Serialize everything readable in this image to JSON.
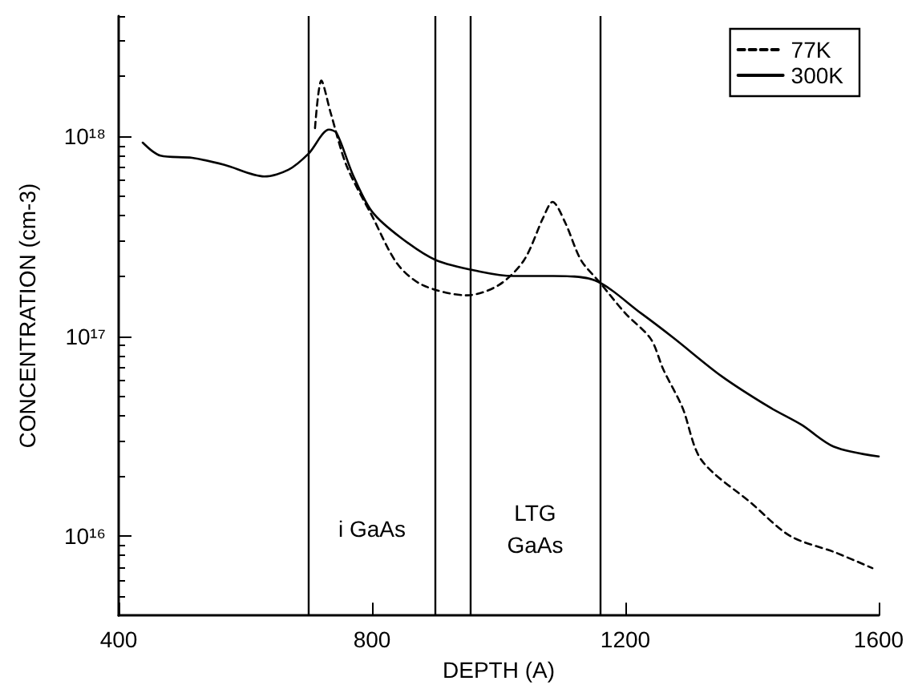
{
  "chart_data": {
    "type": "line",
    "xlabel": "DEPTH (A)",
    "ylabel": "CONCENTRATION (cm-3)",
    "log": "y",
    "xlim": [
      400,
      1600
    ],
    "xticks": [
      400,
      800,
      1200,
      1600
    ],
    "ylim": [
      4000000000000000.0,
      4e+18
    ],
    "yticks": [
      {
        "value": 1e+16,
        "label": "10¹⁶"
      },
      {
        "value": 1e+17,
        "label": "10¹⁷"
      },
      {
        "value": 1e+18,
        "label": "10¹⁸"
      }
    ],
    "legend": "top right",
    "grid": false,
    "marker": "none",
    "series": [
      {
        "name": "77K",
        "color": "#000000",
        "line_style": "dashed",
        "x": [
          710,
          720,
          735,
          760,
          800,
          840,
          880,
          950,
          1000,
          1040,
          1070,
          1085,
          1105,
          1130,
          1160,
          1200,
          1240,
          1260,
          1290,
          1320,
          1400,
          1460,
          1530,
          1590
        ],
        "values": [
          1.1e+18,
          1.9e+18,
          1.3e+18,
          7.1e+17,
          4e+17,
          2.3e+17,
          1.8e+17,
          1.6e+17,
          1.8e+17,
          2.4e+17,
          3.9e+17,
          4.7e+17,
          3.7e+17,
          2.4e+17,
          1.85e+17,
          1.3e+17,
          9.7e+16,
          6.8e+16,
          4.4e+16,
          2.4e+16,
          1.45e+16,
          1e+16,
          8300000000000000.0,
          6900000000000000.0
        ]
      },
      {
        "name": "300K",
        "color": "#000000",
        "line_style": "solid",
        "x": [
          438,
          466,
          516,
          567,
          630,
          668,
          700,
          732,
          744,
          770,
          800,
          846,
          901,
          972,
          1023,
          1086,
          1152,
          1225,
          1276,
          1352,
          1428,
          1478,
          1529,
          1600
        ],
        "values": [
          9.3e+17,
          8e+17,
          7.8e+17,
          7.2e+17,
          6.3e+17,
          6.8e+17,
          8.2e+17,
          1.08e+18,
          1.04e+18,
          6.4e+17,
          4.2e+17,
          3.1e+17,
          2.4e+17,
          2.1e+17,
          2e+17,
          2e+17,
          1.9e+17,
          1.3e+17,
          9.8e+16,
          6.3e+16,
          4.4e+16,
          3.6e+16,
          2.8e+16,
          2.5e+16
        ]
      }
    ],
    "ref_lines": [
      {
        "axis": "x",
        "value": 700,
        "color": "#000000"
      },
      {
        "axis": "x",
        "value": 900,
        "color": "#000000"
      },
      {
        "axis": "x",
        "value": 955,
        "color": "#000000"
      },
      {
        "axis": "x",
        "value": 1160,
        "color": "#000000"
      }
    ],
    "annotations": [
      "i GaAs",
      "LTG\nGaAs"
    ]
  }
}
